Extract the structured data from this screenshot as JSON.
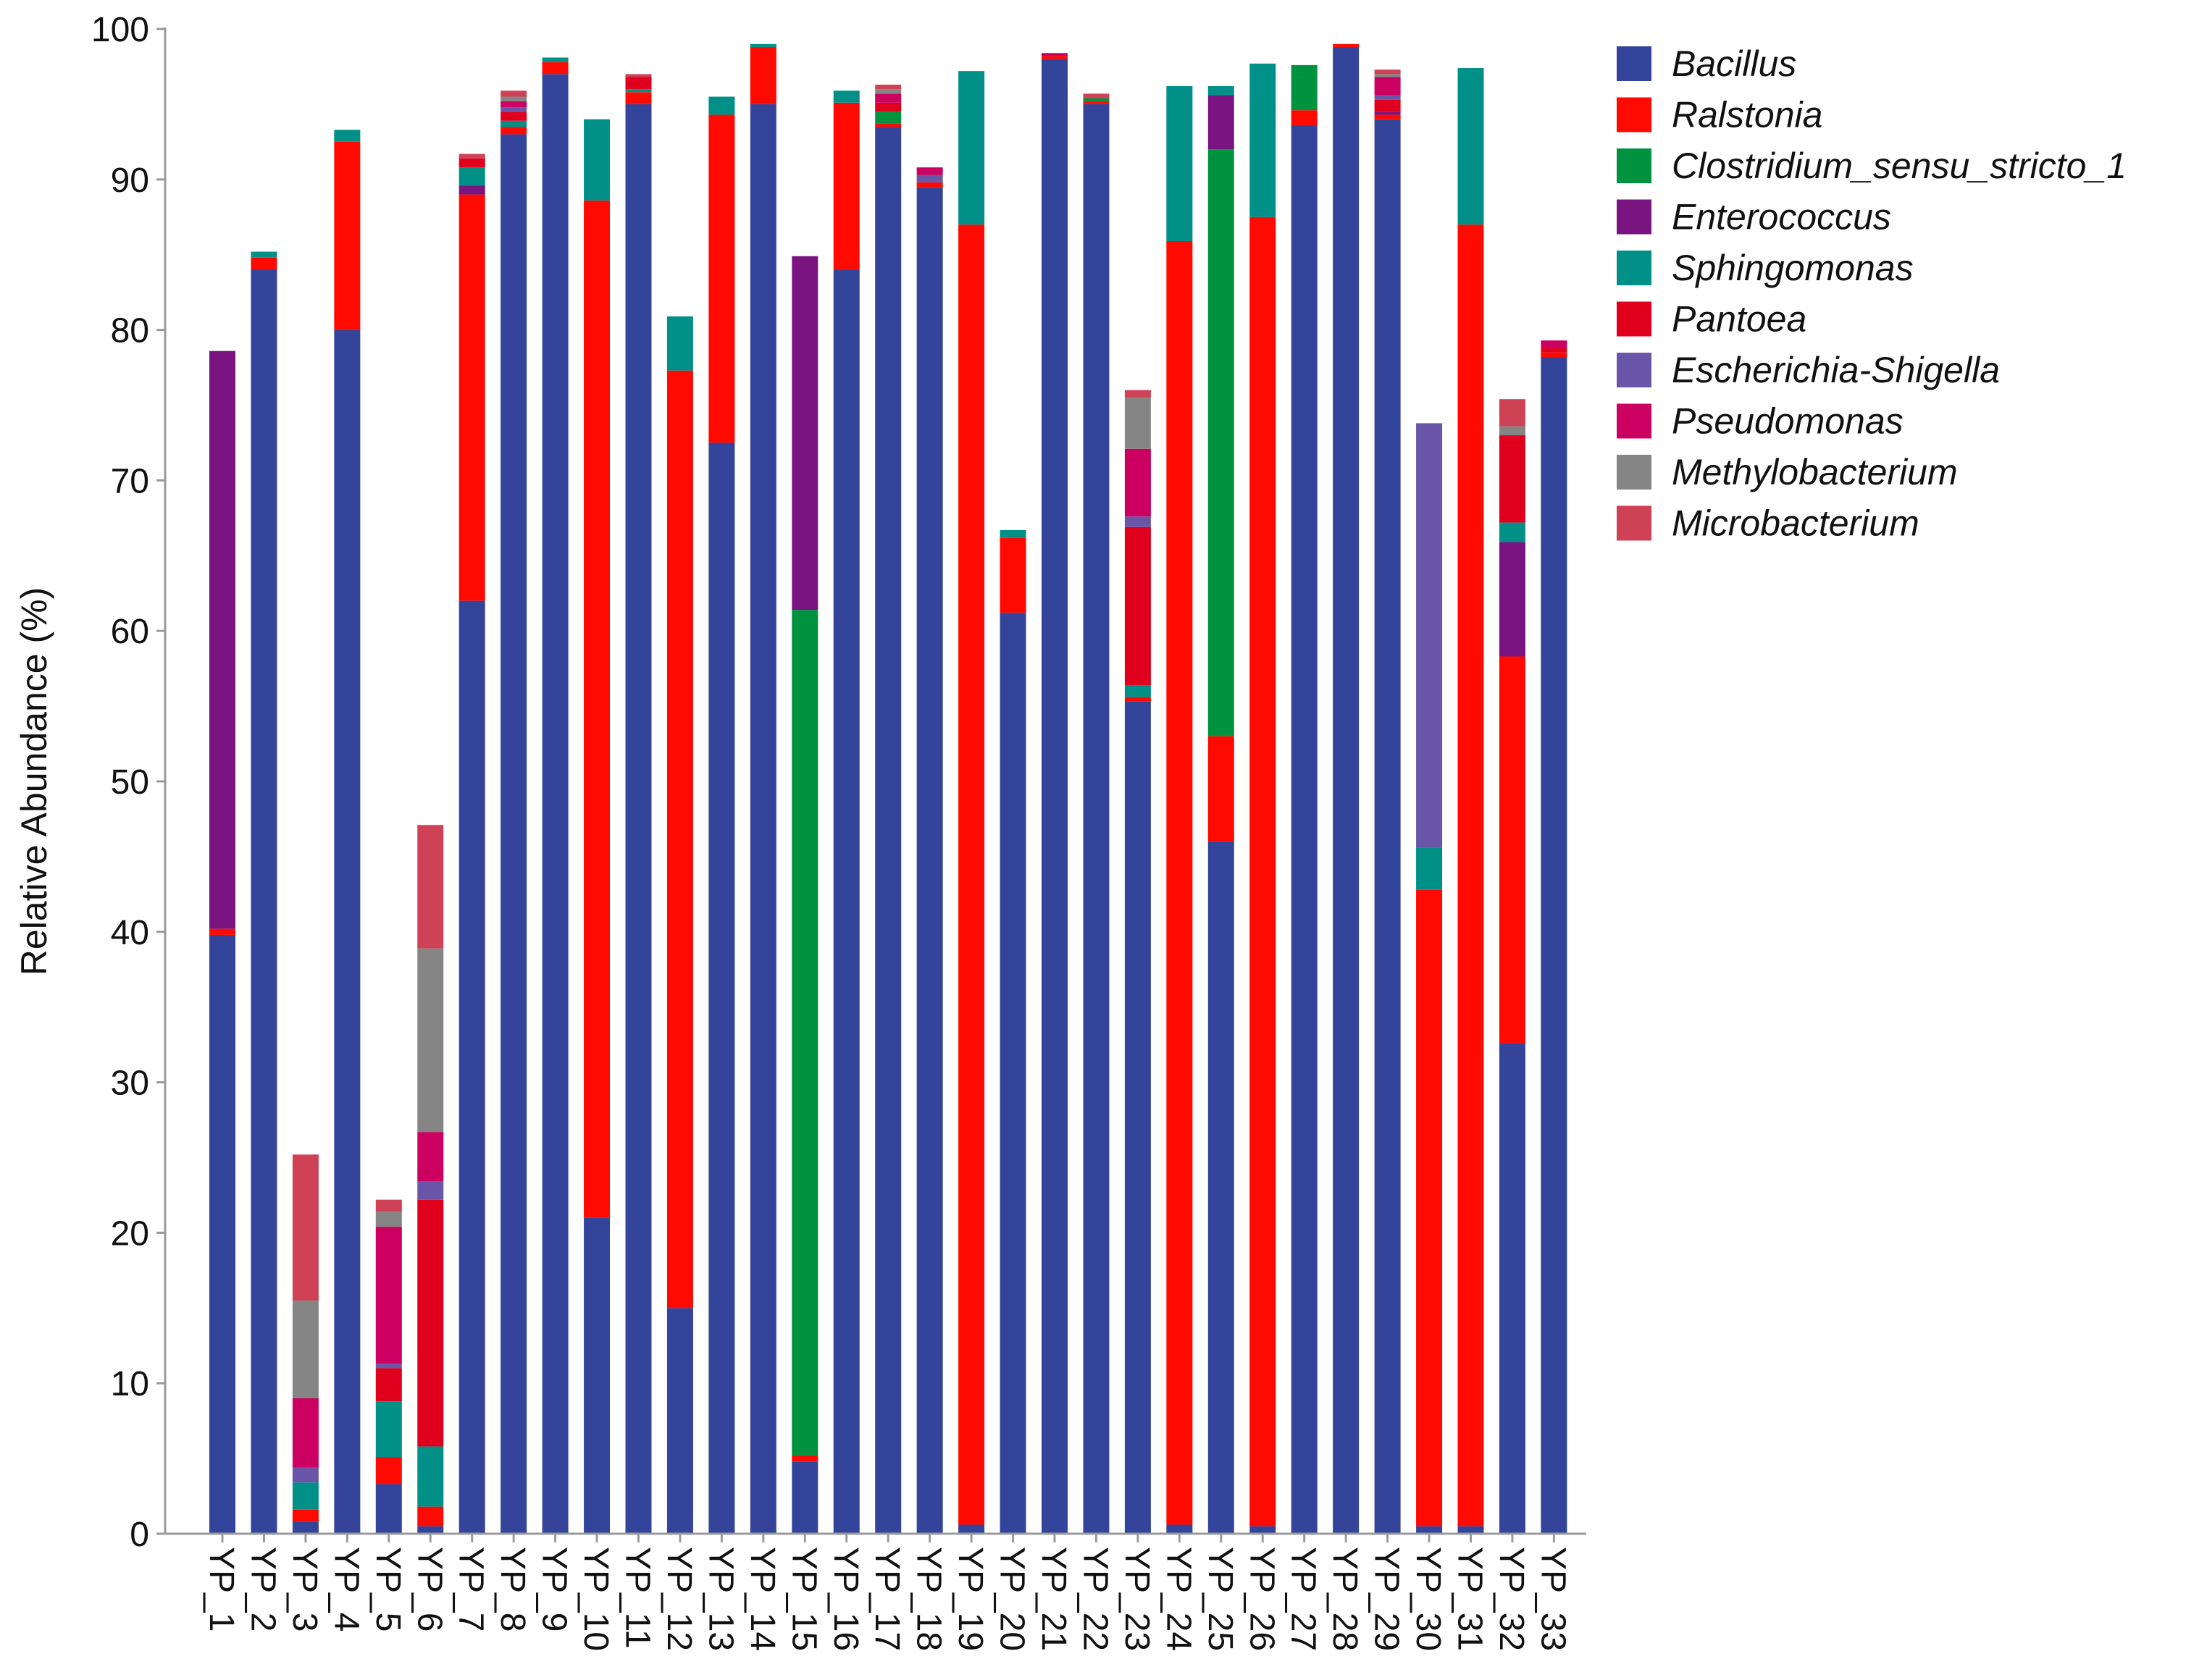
{
  "chart_data": {
    "type": "bar",
    "stacked": true,
    "title": "",
    "xlabel": "",
    "ylabel": "Relative Abundance (%)",
    "ylim": [
      0,
      100
    ],
    "yticks": [
      0,
      10,
      20,
      30,
      40,
      50,
      60,
      70,
      80,
      90,
      100
    ],
    "legend_position": "right",
    "categories": [
      "YP_1",
      "YP_2",
      "YP_3",
      "YP_4",
      "YP_5",
      "YP_6",
      "YP_7",
      "YP_8",
      "YP_9",
      "YP_10",
      "YP_11",
      "YP_12",
      "YP_13",
      "YP_14",
      "YP_15",
      "YP_16",
      "YP_17",
      "YP_18",
      "YP_19",
      "YP_20",
      "YP_21",
      "YP_22",
      "YP_23",
      "YP_24",
      "YP_25",
      "YP_26",
      "YP_27",
      "YP_28",
      "YP_29",
      "YP_30",
      "YP_31",
      "YP_32",
      "YP_33"
    ],
    "series": [
      {
        "name": "Bacillus",
        "color": "#33449a",
        "values": [
          39.8,
          84.0,
          0.8,
          80.0,
          3.3,
          0.5,
          62.0,
          93.0,
          97.0,
          21.0,
          95.0,
          15.0,
          72.5,
          95.0,
          4.8,
          84.0,
          93.5,
          89.5,
          0.6,
          61.2,
          98.0,
          95.0,
          55.3,
          0.6,
          46.0,
          0.5,
          93.6,
          98.8,
          94.0,
          0.5,
          0.5,
          32.6,
          78.2
        ]
      },
      {
        "name": "Ralstonia",
        "color": "#ff0a00",
        "values": [
          0.4,
          0.8,
          0.8,
          12.5,
          1.8,
          1.3,
          27.0,
          0.5,
          0.8,
          67.6,
          0.8,
          62.3,
          21.8,
          3.8,
          0.4,
          11.1,
          0.2,
          0.3,
          86.4,
          5.0,
          0.2,
          0.2,
          0.3,
          85.3,
          7.0,
          87.0,
          1.0,
          0.2,
          0.3,
          42.3,
          86.5,
          25.7,
          0.3
        ]
      },
      {
        "name": "Clostridium_sensu_stricto_1",
        "color": "#00933f",
        "values": [
          0,
          0,
          0,
          0,
          0,
          0,
          0,
          0,
          0,
          0,
          0,
          0,
          0,
          0,
          56.2,
          0,
          0.8,
          0,
          0,
          0,
          0,
          0.2,
          0,
          0,
          39.0,
          0,
          3.0,
          0,
          0,
          0,
          0,
          0,
          0
        ]
      },
      {
        "name": "Enterococcus",
        "color": "#7a1480",
        "values": [
          38.4,
          0,
          0,
          0,
          0,
          0,
          0.6,
          0,
          0,
          0,
          0,
          0,
          0,
          0,
          23.5,
          0,
          0,
          0,
          0,
          0,
          0,
          0,
          0,
          0,
          3.6,
          0,
          0,
          0,
          0.2,
          0,
          0,
          7.6,
          0
        ]
      },
      {
        "name": "Sphingomonas",
        "color": "#009088",
        "values": [
          0,
          0.4,
          1.8,
          0.8,
          3.7,
          4.0,
          1.2,
          0.4,
          0.3,
          5.4,
          0.2,
          3.6,
          1.2,
          0.2,
          0,
          0.8,
          0,
          0,
          10.2,
          0.5,
          0,
          0,
          0.8,
          10.3,
          0.6,
          10.2,
          0,
          0,
          0,
          2.8,
          10.4,
          1.3,
          0
        ]
      },
      {
        "name": "Pantoea",
        "color": "#e0001e",
        "values": [
          0,
          0,
          0,
          0,
          2.2,
          16.4,
          0.6,
          0.6,
          0,
          0,
          0.8,
          0,
          0,
          0,
          0,
          0,
          0.6,
          0,
          0,
          0,
          0,
          0,
          10.5,
          0,
          0,
          0,
          0,
          0,
          0.8,
          0,
          0,
          5.8,
          0.3
        ]
      },
      {
        "name": "Escherichia-Shigella",
        "color": "#6a56a8",
        "values": [
          0,
          0,
          1.0,
          0,
          0.3,
          1.2,
          0,
          0.3,
          0,
          0,
          0,
          0,
          0,
          0,
          0,
          0,
          0,
          0.5,
          0,
          0,
          0,
          0,
          0.7,
          0,
          0,
          0,
          0,
          0,
          0.3,
          28.2,
          0,
          0,
          0
        ]
      },
      {
        "name": "Pseudomonas",
        "color": "#cc0060",
        "values": [
          0,
          0,
          4.6,
          0,
          9.1,
          3.3,
          0,
          0.4,
          0,
          0,
          0,
          0,
          0,
          0,
          0,
          0,
          0.6,
          0.5,
          0,
          0,
          0.2,
          0,
          4.5,
          0,
          0,
          0,
          0,
          0,
          1.2,
          0,
          0,
          0,
          0.5
        ]
      },
      {
        "name": "Methylobacterium",
        "color": "#858585",
        "values": [
          0,
          0,
          6.5,
          0,
          1.0,
          12.2,
          0,
          0.3,
          0,
          0,
          0,
          0,
          0,
          0,
          0,
          0,
          0.3,
          0,
          0,
          0,
          0,
          0,
          3.4,
          0,
          0,
          0,
          0,
          0,
          0.2,
          0,
          0,
          0.6,
          0
        ]
      },
      {
        "name": "Microbacterium",
        "color": "#cf4256",
        "values": [
          0,
          0,
          9.7,
          0,
          0.8,
          8.2,
          0.3,
          0.4,
          0,
          0,
          0.2,
          0,
          0,
          0,
          0,
          0,
          0.3,
          0,
          0,
          0,
          0,
          0.3,
          0.5,
          0,
          0,
          0,
          0,
          0,
          0.3,
          0,
          0,
          1.8,
          0
        ]
      }
    ]
  }
}
